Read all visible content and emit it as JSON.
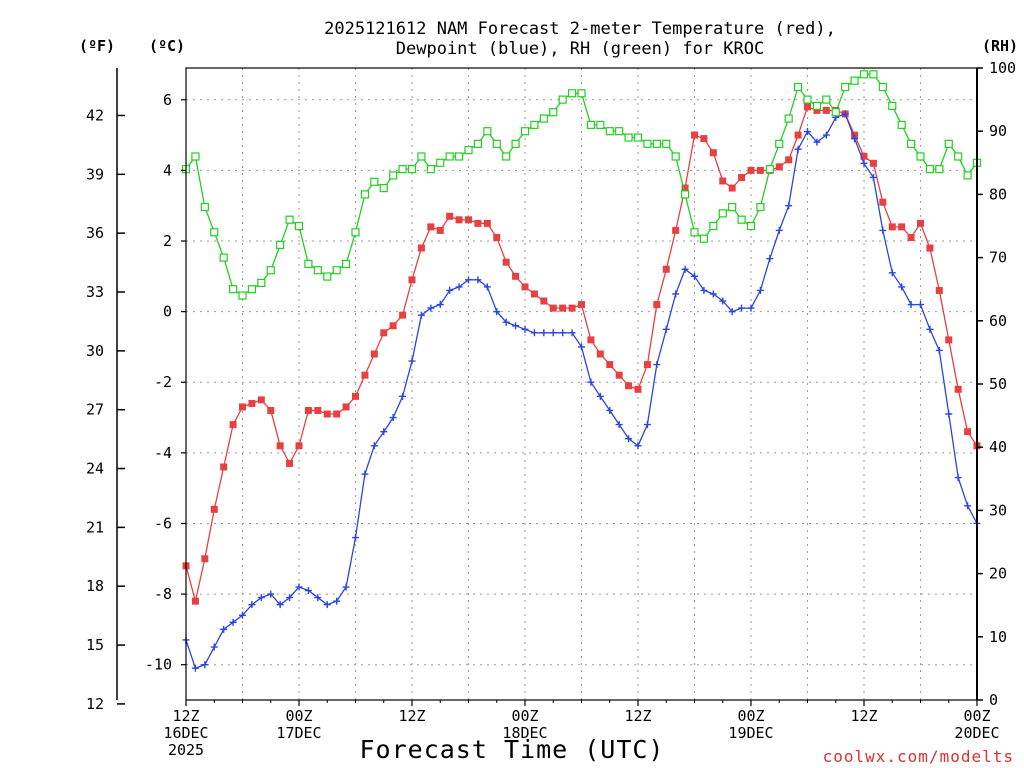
{
  "chart_data": {
    "type": "line",
    "title_lines": [
      "2025121612 NAM Forecast 2-meter Temperature (red),",
      "Dewpoint (blue), RH (green) for KROC"
    ],
    "xlabel": "Forecast Time (UTC)",
    "credit": "coolwx.com/modelts",
    "units": {
      "fahrenheit": "(ºF)",
      "celsius": "(ºC)",
      "rh": "(RH)"
    },
    "x_hours_range": [
      0,
      84
    ],
    "celsius_range": [
      -11,
      6.9
    ],
    "rh_range": [
      0,
      100
    ],
    "x_ticks": [
      {
        "hour": 0,
        "lines": [
          "12Z",
          "16DEC",
          "2025"
        ]
      },
      {
        "hour": 12,
        "lines": [
          "00Z",
          "17DEC"
        ]
      },
      {
        "hour": 24,
        "lines": [
          "12Z"
        ]
      },
      {
        "hour": 36,
        "lines": [
          "00Z",
          "18DEC"
        ]
      },
      {
        "hour": 48,
        "lines": [
          "12Z"
        ]
      },
      {
        "hour": 60,
        "lines": [
          "00Z",
          "19DEC"
        ]
      },
      {
        "hour": 72,
        "lines": [
          "12Z"
        ]
      },
      {
        "hour": 84,
        "lines": [
          "00Z",
          "20DEC"
        ]
      }
    ],
    "celsius_ticks": [
      -10,
      -8,
      -6,
      -4,
      -2,
      0,
      2,
      4,
      6
    ],
    "fahrenheit_ticks": [
      12,
      15,
      18,
      21,
      24,
      27,
      30,
      33,
      36,
      39,
      42
    ],
    "rh_ticks": [
      0,
      10,
      20,
      30,
      40,
      50,
      60,
      70,
      80,
      90,
      100
    ],
    "colors": {
      "temperature": "#e84040",
      "dewpoint": "#2a45e0",
      "rh": "#20d020"
    },
    "series": [
      {
        "name": "Temperature",
        "units": "C",
        "marker": "filled-square",
        "values": [
          -7.2,
          -8.2,
          -7.0,
          -5.6,
          -4.4,
          -3.2,
          -2.7,
          -2.6,
          -2.5,
          -2.8,
          -3.8,
          -4.3,
          -3.8,
          -2.8,
          -2.8,
          -2.9,
          -2.9,
          -2.7,
          -2.4,
          -1.8,
          -1.2,
          -0.6,
          -0.4,
          -0.1,
          0.9,
          1.8,
          2.4,
          2.3,
          2.7,
          2.6,
          2.6,
          2.5,
          2.5,
          2.1,
          1.4,
          1.0,
          0.7,
          0.5,
          0.3,
          0.1,
          0.1,
          0.1,
          0.2,
          -0.8,
          -1.2,
          -1.5,
          -1.8,
          -2.1,
          -2.2,
          -1.5,
          0.2,
          1.2,
          2.3,
          3.5,
          5.0,
          4.9,
          4.5,
          3.7,
          3.5,
          3.8,
          4.0,
          4.0,
          4.0,
          4.1,
          4.3,
          5.0,
          5.8,
          5.7,
          5.7,
          5.7,
          5.6,
          5.0,
          4.4,
          4.2,
          3.1,
          2.4,
          2.4,
          2.1,
          2.5,
          1.8,
          0.6,
          -0.8,
          -2.2,
          -3.4,
          -3.8
        ]
      },
      {
        "name": "Dewpoint",
        "units": "C",
        "marker": "plus",
        "values": [
          -9.3,
          -10.1,
          -10.0,
          -9.5,
          -9.0,
          -8.8,
          -8.6,
          -8.3,
          -8.1,
          -8.0,
          -8.3,
          -8.1,
          -7.8,
          -7.9,
          -8.1,
          -8.3,
          -8.2,
          -7.8,
          -6.4,
          -4.6,
          -3.8,
          -3.4,
          -3.0,
          -2.4,
          -1.4,
          -0.1,
          0.1,
          0.2,
          0.6,
          0.7,
          0.9,
          0.9,
          0.7,
          0.0,
          -0.3,
          -0.4,
          -0.5,
          -0.6,
          -0.6,
          -0.6,
          -0.6,
          -0.6,
          -1.0,
          -2.0,
          -2.4,
          -2.8,
          -3.2,
          -3.6,
          -3.8,
          -3.2,
          -1.5,
          -0.5,
          0.5,
          1.2,
          1.0,
          0.6,
          0.5,
          0.3,
          0.0,
          0.1,
          0.1,
          0.6,
          1.5,
          2.3,
          3.0,
          4.6,
          5.1,
          4.8,
          5.0,
          5.5,
          5.6,
          4.9,
          4.2,
          3.8,
          2.3,
          1.1,
          0.7,
          0.2,
          0.2,
          -0.5,
          -1.1,
          -2.9,
          -4.7,
          -5.5,
          -6.0
        ]
      },
      {
        "name": "RH",
        "units": "%",
        "marker": "open-square",
        "axis": "right",
        "values": [
          84,
          86,
          78,
          74,
          70,
          65,
          64,
          65,
          66,
          68,
          72,
          76,
          75,
          69,
          68,
          67,
          68,
          69,
          74,
          80,
          82,
          81,
          83,
          84,
          84,
          86,
          84,
          85,
          86,
          86,
          87,
          88,
          90,
          88,
          86,
          88,
          90,
          91,
          92,
          93,
          95,
          96,
          96,
          91,
          91,
          90,
          90,
          89,
          89,
          88,
          88,
          88,
          86,
          80,
          74,
          73,
          75,
          77,
          78,
          76,
          75,
          78,
          84,
          88,
          92,
          97,
          95,
          94,
          95,
          93,
          97,
          98,
          99,
          99,
          97,
          94,
          91,
          88,
          86,
          84,
          84,
          88,
          86,
          83,
          85
        ]
      }
    ]
  }
}
